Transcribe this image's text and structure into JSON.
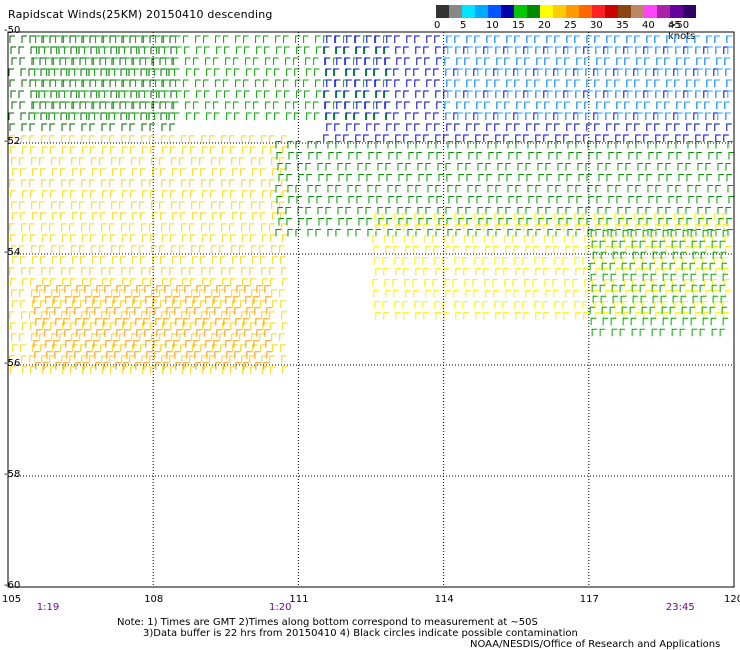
{
  "title": "Rapidscat Winds(25KM) 20150410 descending",
  "legend": {
    "unit_label": ">50 knots",
    "ticks": [
      "0",
      "5",
      "10",
      "15",
      "20",
      "25",
      "30",
      "35",
      "40",
      "45"
    ],
    "colors": [
      "#333333",
      "#888888",
      "#00e5ff",
      "#00aaff",
      "#0055ff",
      "#0000aa",
      "#00c800",
      "#008800",
      "#ffff00",
      "#ffcc00",
      "#ff9900",
      "#ff6600",
      "#ff2222",
      "#cc0000",
      "#8b4513",
      "#bb8866",
      "#ff44ff",
      "#aa22aa",
      "#660099",
      "#330066"
    ]
  },
  "lon_labels": [
    "105",
    "108",
    "111",
    "114",
    "117",
    "120"
  ],
  "lat_labels": [
    "-50",
    "-52",
    "-54",
    "-56",
    "-58",
    "-60"
  ],
  "time_labels": [
    {
      "text": "1:19",
      "lon": 105.8
    },
    {
      "text": "1:20",
      "lon": 110.6
    },
    {
      "text": "23:45",
      "lon": 118.8
    }
  ],
  "notes": {
    "line1": "Note: 1) Times are GMT 2)Times along bottom correspond to measurement at ~50S",
    "line2": "3)Data buffer is 22 hrs from 20150410 4) Black circles indicate possible contamination",
    "credit": "NOAA/NESDIS/Office of Research and Applications"
  },
  "map": {
    "lon_range": [
      105,
      120
    ],
    "lat_range": [
      -60,
      -50
    ],
    "grid": true,
    "wind_regions": [
      {
        "name": "dark-green-nw",
        "lon": [
          105,
          108.5
        ],
        "lat": [
          -51.8,
          -50.0
        ],
        "color": "#006400"
      },
      {
        "name": "green-north",
        "lon": [
          105.5,
          113
        ],
        "lat": [
          -51.5,
          -50.0
        ],
        "color": "#00aa00"
      },
      {
        "name": "blue-ne",
        "lon": [
          111.5,
          120
        ],
        "lat": [
          -51.9,
          -50.0
        ],
        "color": "#0000cc"
      },
      {
        "name": "cyan-ne",
        "lon": [
          114,
          120
        ],
        "lat": [
          -51.6,
          -50.0
        ],
        "color": "#22aaff"
      },
      {
        "name": "yellow-west",
        "lon": [
          105,
          110.8
        ],
        "lat": [
          -56.1,
          -51.8
        ],
        "color": "#ffd700"
      },
      {
        "name": "orange-west",
        "lon": [
          105.5,
          110.5
        ],
        "lat": [
          -56.1,
          -54.5
        ],
        "color": "#ff9900"
      },
      {
        "name": "green-mid",
        "lon": [
          110.5,
          120
        ],
        "lat": [
          -53.7,
          -51.9
        ],
        "color": "#009900"
      },
      {
        "name": "yellow-east",
        "lon": [
          112.5,
          120
        ],
        "lat": [
          -55.2,
          -53.2
        ],
        "color": "#ffee00"
      },
      {
        "name": "green-se",
        "lon": [
          117,
          120
        ],
        "lat": [
          -55.4,
          -53.5
        ],
        "color": "#00aa00"
      }
    ]
  }
}
